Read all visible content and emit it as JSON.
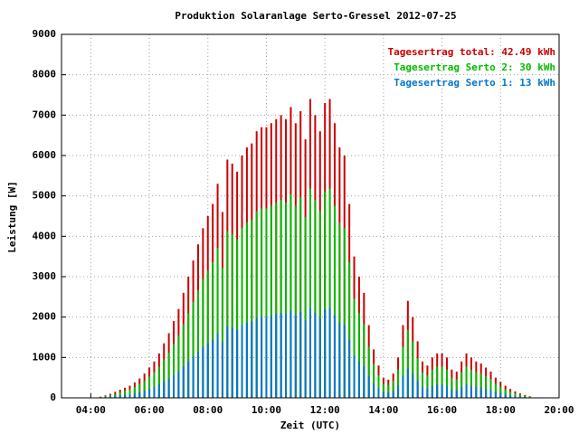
{
  "chart_data": {
    "type": "bar",
    "title": "Produktion Solaranlage Serto-Gressel 2012-07-25",
    "xlabel": "Zeit (UTC)",
    "ylabel": "Leistung [W]",
    "x": [
      "04:20",
      "04:30",
      "04:40",
      "04:50",
      "05:00",
      "05:10",
      "05:20",
      "05:30",
      "05:40",
      "05:50",
      "06:00",
      "06:10",
      "06:20",
      "06:30",
      "06:40",
      "06:50",
      "07:00",
      "07:10",
      "07:20",
      "07:30",
      "07:40",
      "07:50",
      "08:00",
      "08:10",
      "08:20",
      "08:30",
      "08:40",
      "08:50",
      "09:00",
      "09:10",
      "09:20",
      "09:30",
      "09:40",
      "09:50",
      "10:00",
      "10:10",
      "10:20",
      "10:30",
      "10:40",
      "10:50",
      "11:00",
      "11:10",
      "11:20",
      "11:30",
      "11:40",
      "11:50",
      "12:00",
      "12:10",
      "12:20",
      "12:30",
      "12:40",
      "12:50",
      "13:00",
      "13:10",
      "13:20",
      "13:30",
      "13:40",
      "13:50",
      "14:00",
      "14:10",
      "14:20",
      "14:30",
      "14:40",
      "14:50",
      "15:00",
      "15:10",
      "15:20",
      "15:30",
      "15:40",
      "15:50",
      "16:00",
      "16:10",
      "16:20",
      "16:30",
      "16:40",
      "16:50",
      "17:00",
      "17:10",
      "17:20",
      "17:30",
      "17:40",
      "17:50",
      "18:00",
      "18:10",
      "18:20",
      "18:30",
      "18:40",
      "18:50",
      "19:00"
    ],
    "series": [
      {
        "name": "Tagesertrag total: 42.49 kWh",
        "color": "#cc0000",
        "values": [
          30,
          60,
          100,
          150,
          200,
          250,
          300,
          380,
          480,
          600,
          750,
          900,
          1100,
          1350,
          1600,
          1900,
          2200,
          2600,
          3000,
          3400,
          3800,
          4200,
          4500,
          4800,
          5300,
          4600,
          5900,
          5800,
          5600,
          6000,
          6200,
          6300,
          6600,
          6700,
          6700,
          6800,
          6900,
          7000,
          6900,
          7200,
          6800,
          7100,
          6400,
          7400,
          7000,
          6600,
          7300,
          7400,
          6800,
          6200,
          6000,
          4800,
          3500,
          3000,
          2600,
          1800,
          1200,
          800,
          500,
          450,
          600,
          1000,
          1800,
          2400,
          2000,
          1400,
          900,
          800,
          1000,
          1100,
          1100,
          1000,
          700,
          650,
          900,
          1100,
          1000,
          900,
          850,
          750,
          650,
          500,
          400,
          300,
          220,
          160,
          110,
          70,
          40
        ]
      },
      {
        "name": "Tagesertrag Serto 2: 30 kWh",
        "color": "#00bb00",
        "values": [
          20,
          40,
          70,
          100,
          140,
          180,
          210,
          270,
          340,
          420,
          530,
          630,
          770,
          950,
          1120,
          1330,
          1540,
          1820,
          2100,
          2380,
          2660,
          2940,
          3150,
          3360,
          3710,
          3220,
          4130,
          4060,
          3920,
          4200,
          4340,
          4410,
          4620,
          4690,
          4690,
          4760,
          4830,
          4900,
          4830,
          5040,
          4760,
          4970,
          4480,
          5180,
          4900,
          4620,
          5110,
          5180,
          4760,
          4340,
          4200,
          3360,
          2450,
          2100,
          1820,
          1260,
          840,
          560,
          350,
          320,
          420,
          700,
          1260,
          1680,
          1400,
          980,
          630,
          560,
          700,
          770,
          770,
          700,
          490,
          460,
          630,
          770,
          700,
          630,
          600,
          530,
          460,
          350,
          280,
          210,
          150,
          110,
          80,
          50,
          30
        ]
      },
      {
        "name": "Tagesertrag Serto 1: 13 kWh",
        "color": "#0077cc",
        "values": [
          10,
          20,
          30,
          50,
          60,
          80,
          90,
          110,
          140,
          180,
          220,
          270,
          330,
          400,
          480,
          570,
          660,
          780,
          900,
          1020,
          1140,
          1260,
          1350,
          1440,
          1590,
          1380,
          1770,
          1740,
          1680,
          1800,
          1860,
          1890,
          1980,
          2010,
          2010,
          2040,
          2070,
          2100,
          2070,
          2160,
          2040,
          2130,
          1920,
          2220,
          2100,
          1980,
          2190,
          2220,
          2040,
          1860,
          1800,
          1440,
          1050,
          900,
          780,
          540,
          360,
          240,
          150,
          130,
          180,
          300,
          540,
          720,
          600,
          420,
          270,
          240,
          300,
          330,
          330,
          300,
          210,
          190,
          270,
          330,
          300,
          270,
          250,
          220,
          190,
          150,
          120,
          90,
          70,
          50,
          30,
          20,
          10
        ]
      }
    ],
    "xlim": [
      "03:00",
      "20:00"
    ],
    "xticks": [
      "04:00",
      "06:00",
      "08:00",
      "10:00",
      "12:00",
      "14:00",
      "16:00",
      "18:00",
      "20:00"
    ],
    "ylim": [
      0,
      9000
    ],
    "yticks": [
      0,
      1000,
      2000,
      3000,
      4000,
      5000,
      6000,
      7000,
      8000,
      9000
    ],
    "grid": true,
    "legend": "upper right"
  }
}
